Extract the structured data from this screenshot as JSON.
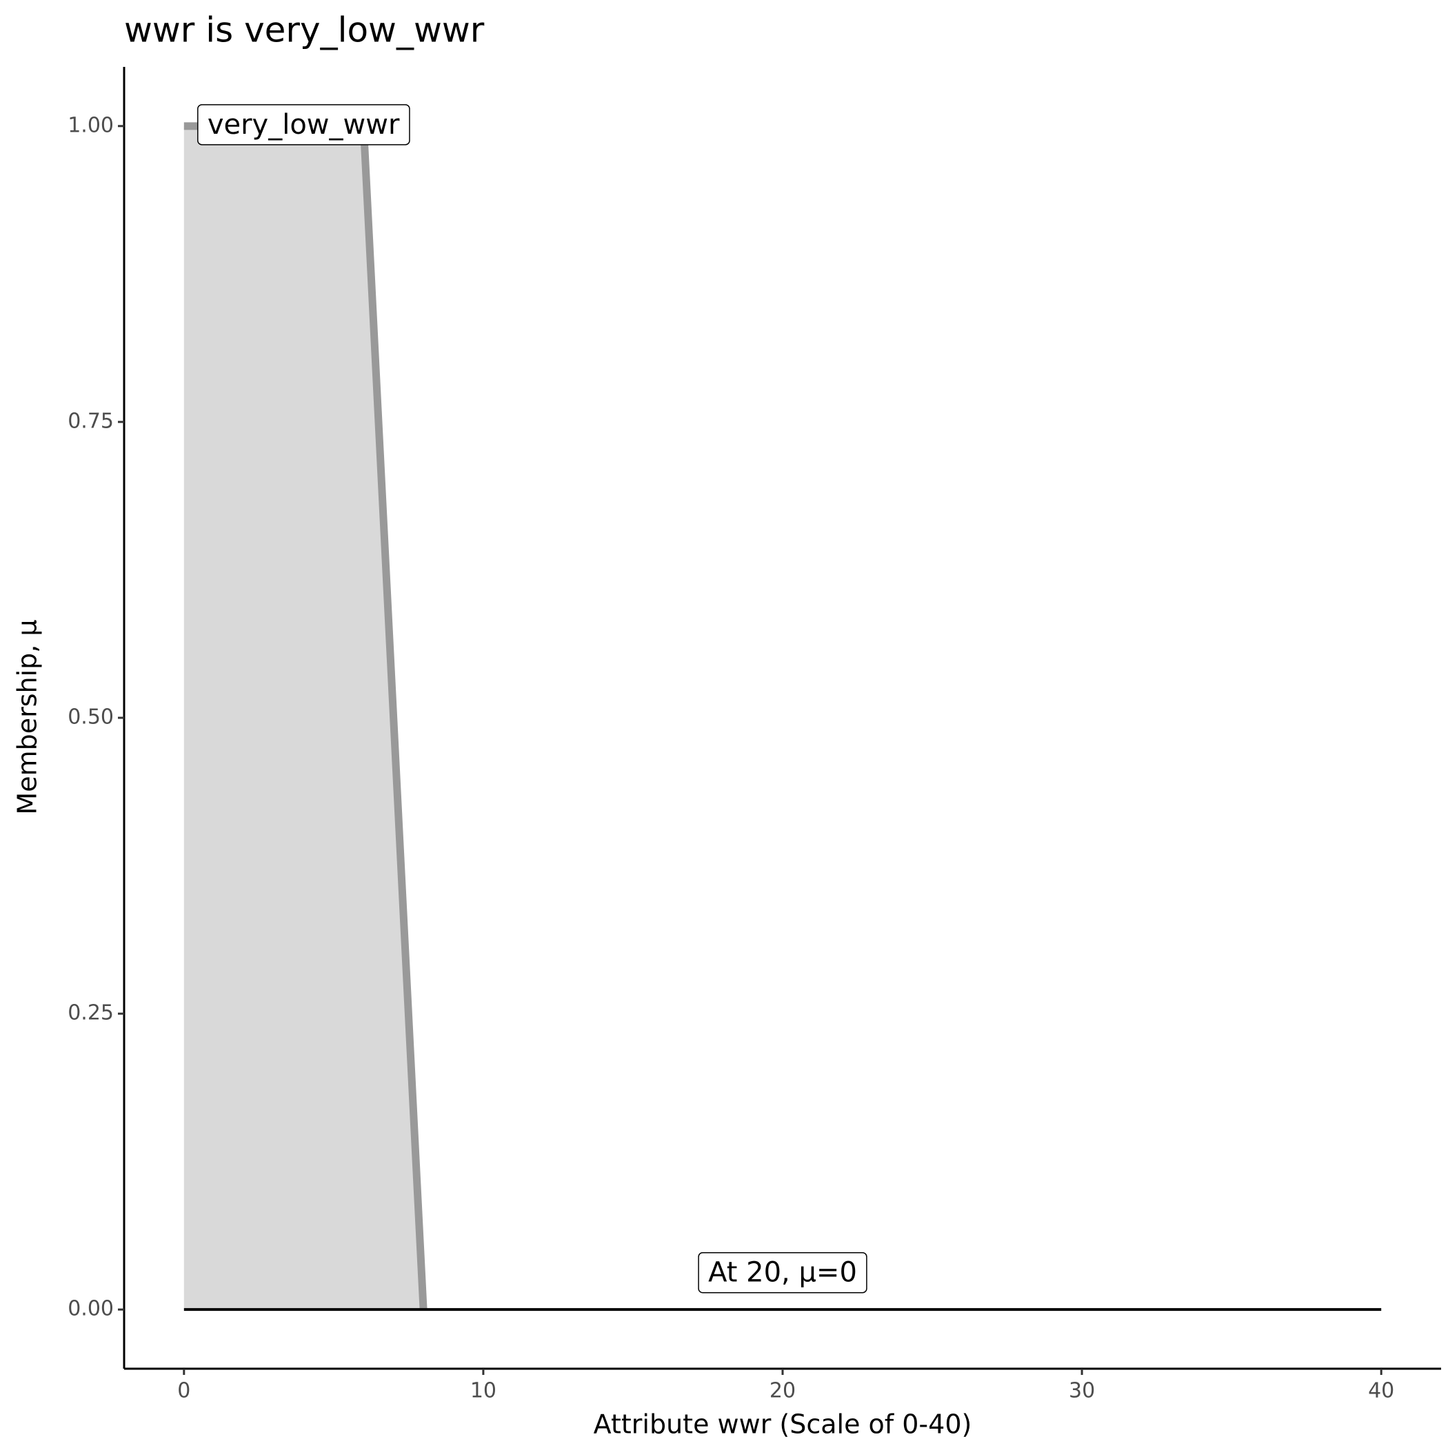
{
  "chart_data": {
    "type": "area",
    "title": "wwr is very_low_wwr",
    "x_label": "Attribute wwr (Scale of 0-40)",
    "y_label": "Membership, μ",
    "xlim": [
      -2,
      42
    ],
    "ylim": [
      -0.05,
      1.05
    ],
    "xticks": [
      0,
      10,
      20,
      30,
      40
    ],
    "yticks": [
      {
        "value": 0,
        "label": "0.00"
      },
      {
        "value": 0.25,
        "label": "0.25"
      },
      {
        "value": 0.5,
        "label": "0.50"
      },
      {
        "value": 0.75,
        "label": "0.75"
      },
      {
        "value": 1,
        "label": "1.00"
      }
    ],
    "grid": false,
    "series": [
      {
        "color": "#999999",
        "fill": "#d9d9d9",
        "x": [
          0,
          6,
          8
        ],
        "values": [
          1,
          1,
          0
        ]
      },
      {
        "color": "#000000",
        "x": [
          0,
          40
        ],
        "values": [
          0,
          0
        ]
      }
    ],
    "annotations": [
      {
        "text": "very_low_wwr",
        "x": 0,
        "y": 1,
        "anchor": "start"
      },
      {
        "text": "At 20, μ=0",
        "x": 20,
        "y": 0.03,
        "anchor": "middle"
      }
    ]
  }
}
